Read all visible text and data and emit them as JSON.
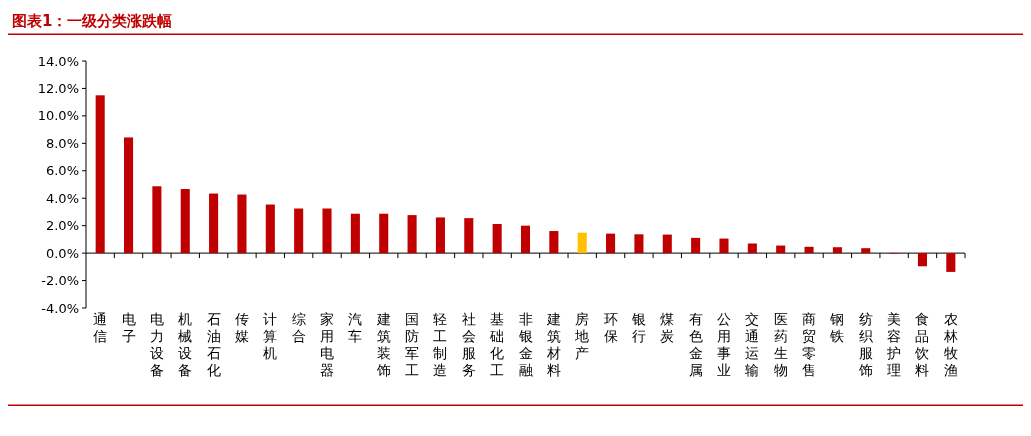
{
  "chart_data": {
    "type": "bar",
    "title": "图表1：一级分类涨跌幅",
    "categories": [
      "通信",
      "电子",
      "电力设备",
      "机械设备",
      "石油石化",
      "传媒",
      "计算机",
      "综合",
      "家用电器",
      "汽车",
      "建筑装饰",
      "国防军工",
      "轻工制造",
      "社会服务",
      "基础化工",
      "非银金融",
      "建筑材料",
      "房地产",
      "环保",
      "银行",
      "煤炭",
      "有色金属",
      "公用事业",
      "交通运输",
      "医药生物",
      "商贸零售",
      "钢铁",
      "纺织服饰",
      "美容护理",
      "食品饮料",
      "农林牧渔"
    ],
    "values": [
      11.5,
      8.43,
      4.87,
      4.67,
      4.34,
      4.27,
      3.54,
      3.25,
      3.25,
      2.87,
      2.87,
      2.77,
      2.6,
      2.55,
      2.12,
      2.0,
      1.61,
      1.49,
      1.42,
      1.37,
      1.35,
      1.11,
      1.06,
      0.7,
      0.55,
      0.46,
      0.43,
      0.36,
      -0.05,
      -0.96,
      -1.37
    ],
    "colors": [
      "#c00000",
      "#c00000",
      "#c00000",
      "#c00000",
      "#c00000",
      "#c00000",
      "#c00000",
      "#c00000",
      "#c00000",
      "#c00000",
      "#c00000",
      "#c00000",
      "#c00000",
      "#c00000",
      "#c00000",
      "#c00000",
      "#c00000",
      "#ffc000",
      "#c00000",
      "#c00000",
      "#c00000",
      "#c00000",
      "#c00000",
      "#c00000",
      "#c00000",
      "#c00000",
      "#c00000",
      "#c00000",
      "#c00000",
      "#c00000",
      "#c00000"
    ],
    "ylim": [
      -4,
      14
    ],
    "yticks": [
      {
        "value": -4,
        "label": "-4.0%"
      },
      {
        "value": -2,
        "label": "-2.0%"
      },
      {
        "value": 0,
        "label": "0.0%"
      },
      {
        "value": 2,
        "label": "2.0%"
      },
      {
        "value": 4,
        "label": "4.0%"
      },
      {
        "value": 6,
        "label": "6.0%"
      },
      {
        "value": 8,
        "label": "8.0%"
      },
      {
        "value": 10,
        "label": "10.0%"
      },
      {
        "value": 12,
        "label": "12.0%"
      },
      {
        "value": 14,
        "label": "14.0%"
      }
    ]
  }
}
